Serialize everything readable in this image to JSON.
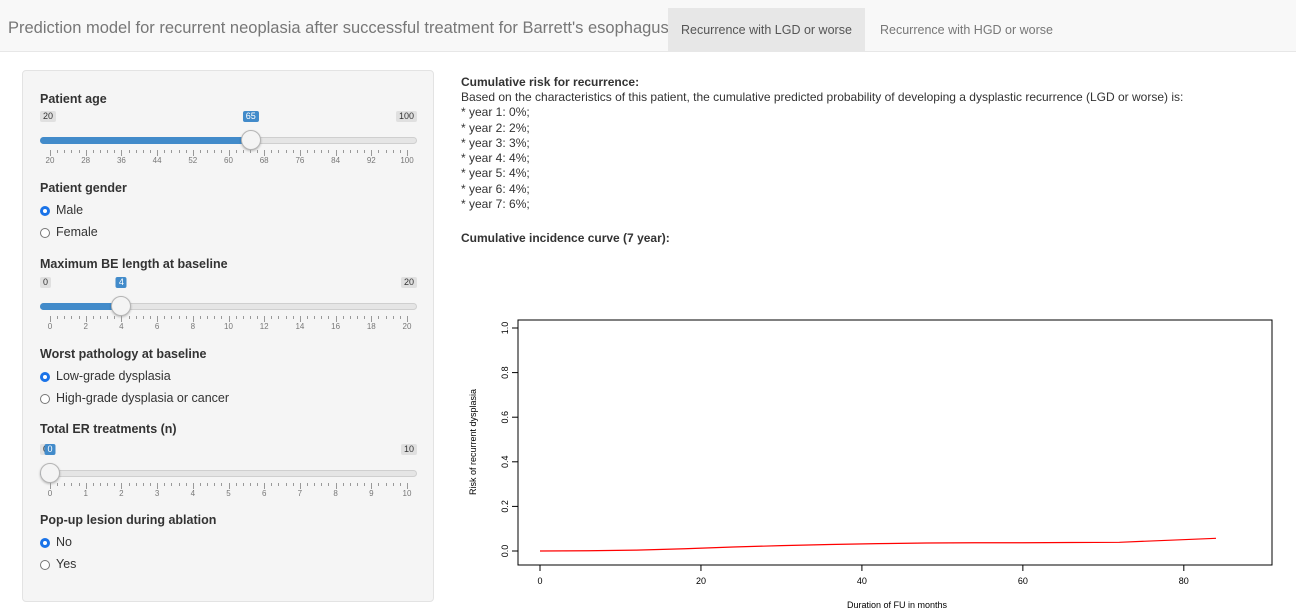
{
  "header": {
    "title": "Prediction model for recurrent neoplasia after successful treatment for Barrett's esophagus",
    "tabs": [
      {
        "label": "Recurrence with LGD or worse",
        "active": true
      },
      {
        "label": "Recurrence with HGD or worse",
        "active": false
      }
    ]
  },
  "sidebar": {
    "age": {
      "label": "Patient age",
      "min": 20,
      "max": 100,
      "value": 65,
      "ticks": [
        "20",
        "28",
        "36",
        "44",
        "52",
        "60",
        "68",
        "76",
        "84",
        "92",
        "100"
      ]
    },
    "gender": {
      "label": "Patient gender",
      "options": [
        "Male",
        "Female"
      ],
      "selected": 0
    },
    "be_length": {
      "label": "Maximum BE length at baseline",
      "min": 0,
      "max": 20,
      "value": 4,
      "ticks": [
        "0",
        "2",
        "4",
        "6",
        "8",
        "10",
        "12",
        "14",
        "16",
        "18",
        "20"
      ]
    },
    "pathology": {
      "label": "Worst pathology at baseline",
      "options": [
        "Low-grade dysplasia",
        "High-grade dysplasia or cancer"
      ],
      "selected": 0
    },
    "er_treatments": {
      "label": "Total ER treatments (n)",
      "min": 0,
      "max": 10,
      "value": 0,
      "ticks": [
        "0",
        "1",
        "2",
        "3",
        "4",
        "5",
        "6",
        "7",
        "8",
        "9",
        "10"
      ]
    },
    "popup": {
      "label": "Pop-up lesion during ablation",
      "options": [
        "No",
        "Yes"
      ],
      "selected": 0
    }
  },
  "main": {
    "risk_title": "Cumulative risk for recurrence:",
    "risk_intro": "Based on the characteristics of this patient, the cumulative predicted probability of developing a dysplastic recurrence (LGD or worse) is:",
    "years": [
      "* year 1: 0%;",
      "* year 2: 2%;",
      "* year 3: 3%;",
      "* year 4: 4%;",
      "* year 5: 4%;",
      "* year 6: 4%;",
      "* year 7: 6%;"
    ],
    "curve_title": "Cumulative incidence curve (7 year):"
  },
  "chart_data": {
    "type": "line",
    "title": "",
    "xlabel": "Duration of FU in months",
    "ylabel": "Risk of recurrent dysplasia",
    "xlim": [
      0,
      84
    ],
    "ylim": [
      0,
      1
    ],
    "xticks": [
      0,
      20,
      40,
      60,
      80
    ],
    "yticks": [
      0.0,
      0.2,
      0.4,
      0.6,
      0.8,
      1.0
    ],
    "grid": false,
    "line_color": "#ff0000",
    "series": [
      {
        "x": [
          0,
          6,
          12,
          18,
          24,
          30,
          36,
          42,
          48,
          54,
          60,
          66,
          72,
          78,
          84
        ],
        "values": [
          0.0,
          0.001,
          0.004,
          0.01,
          0.018,
          0.024,
          0.029,
          0.033,
          0.036,
          0.037,
          0.037,
          0.038,
          0.039,
          0.048,
          0.057
        ]
      }
    ]
  }
}
